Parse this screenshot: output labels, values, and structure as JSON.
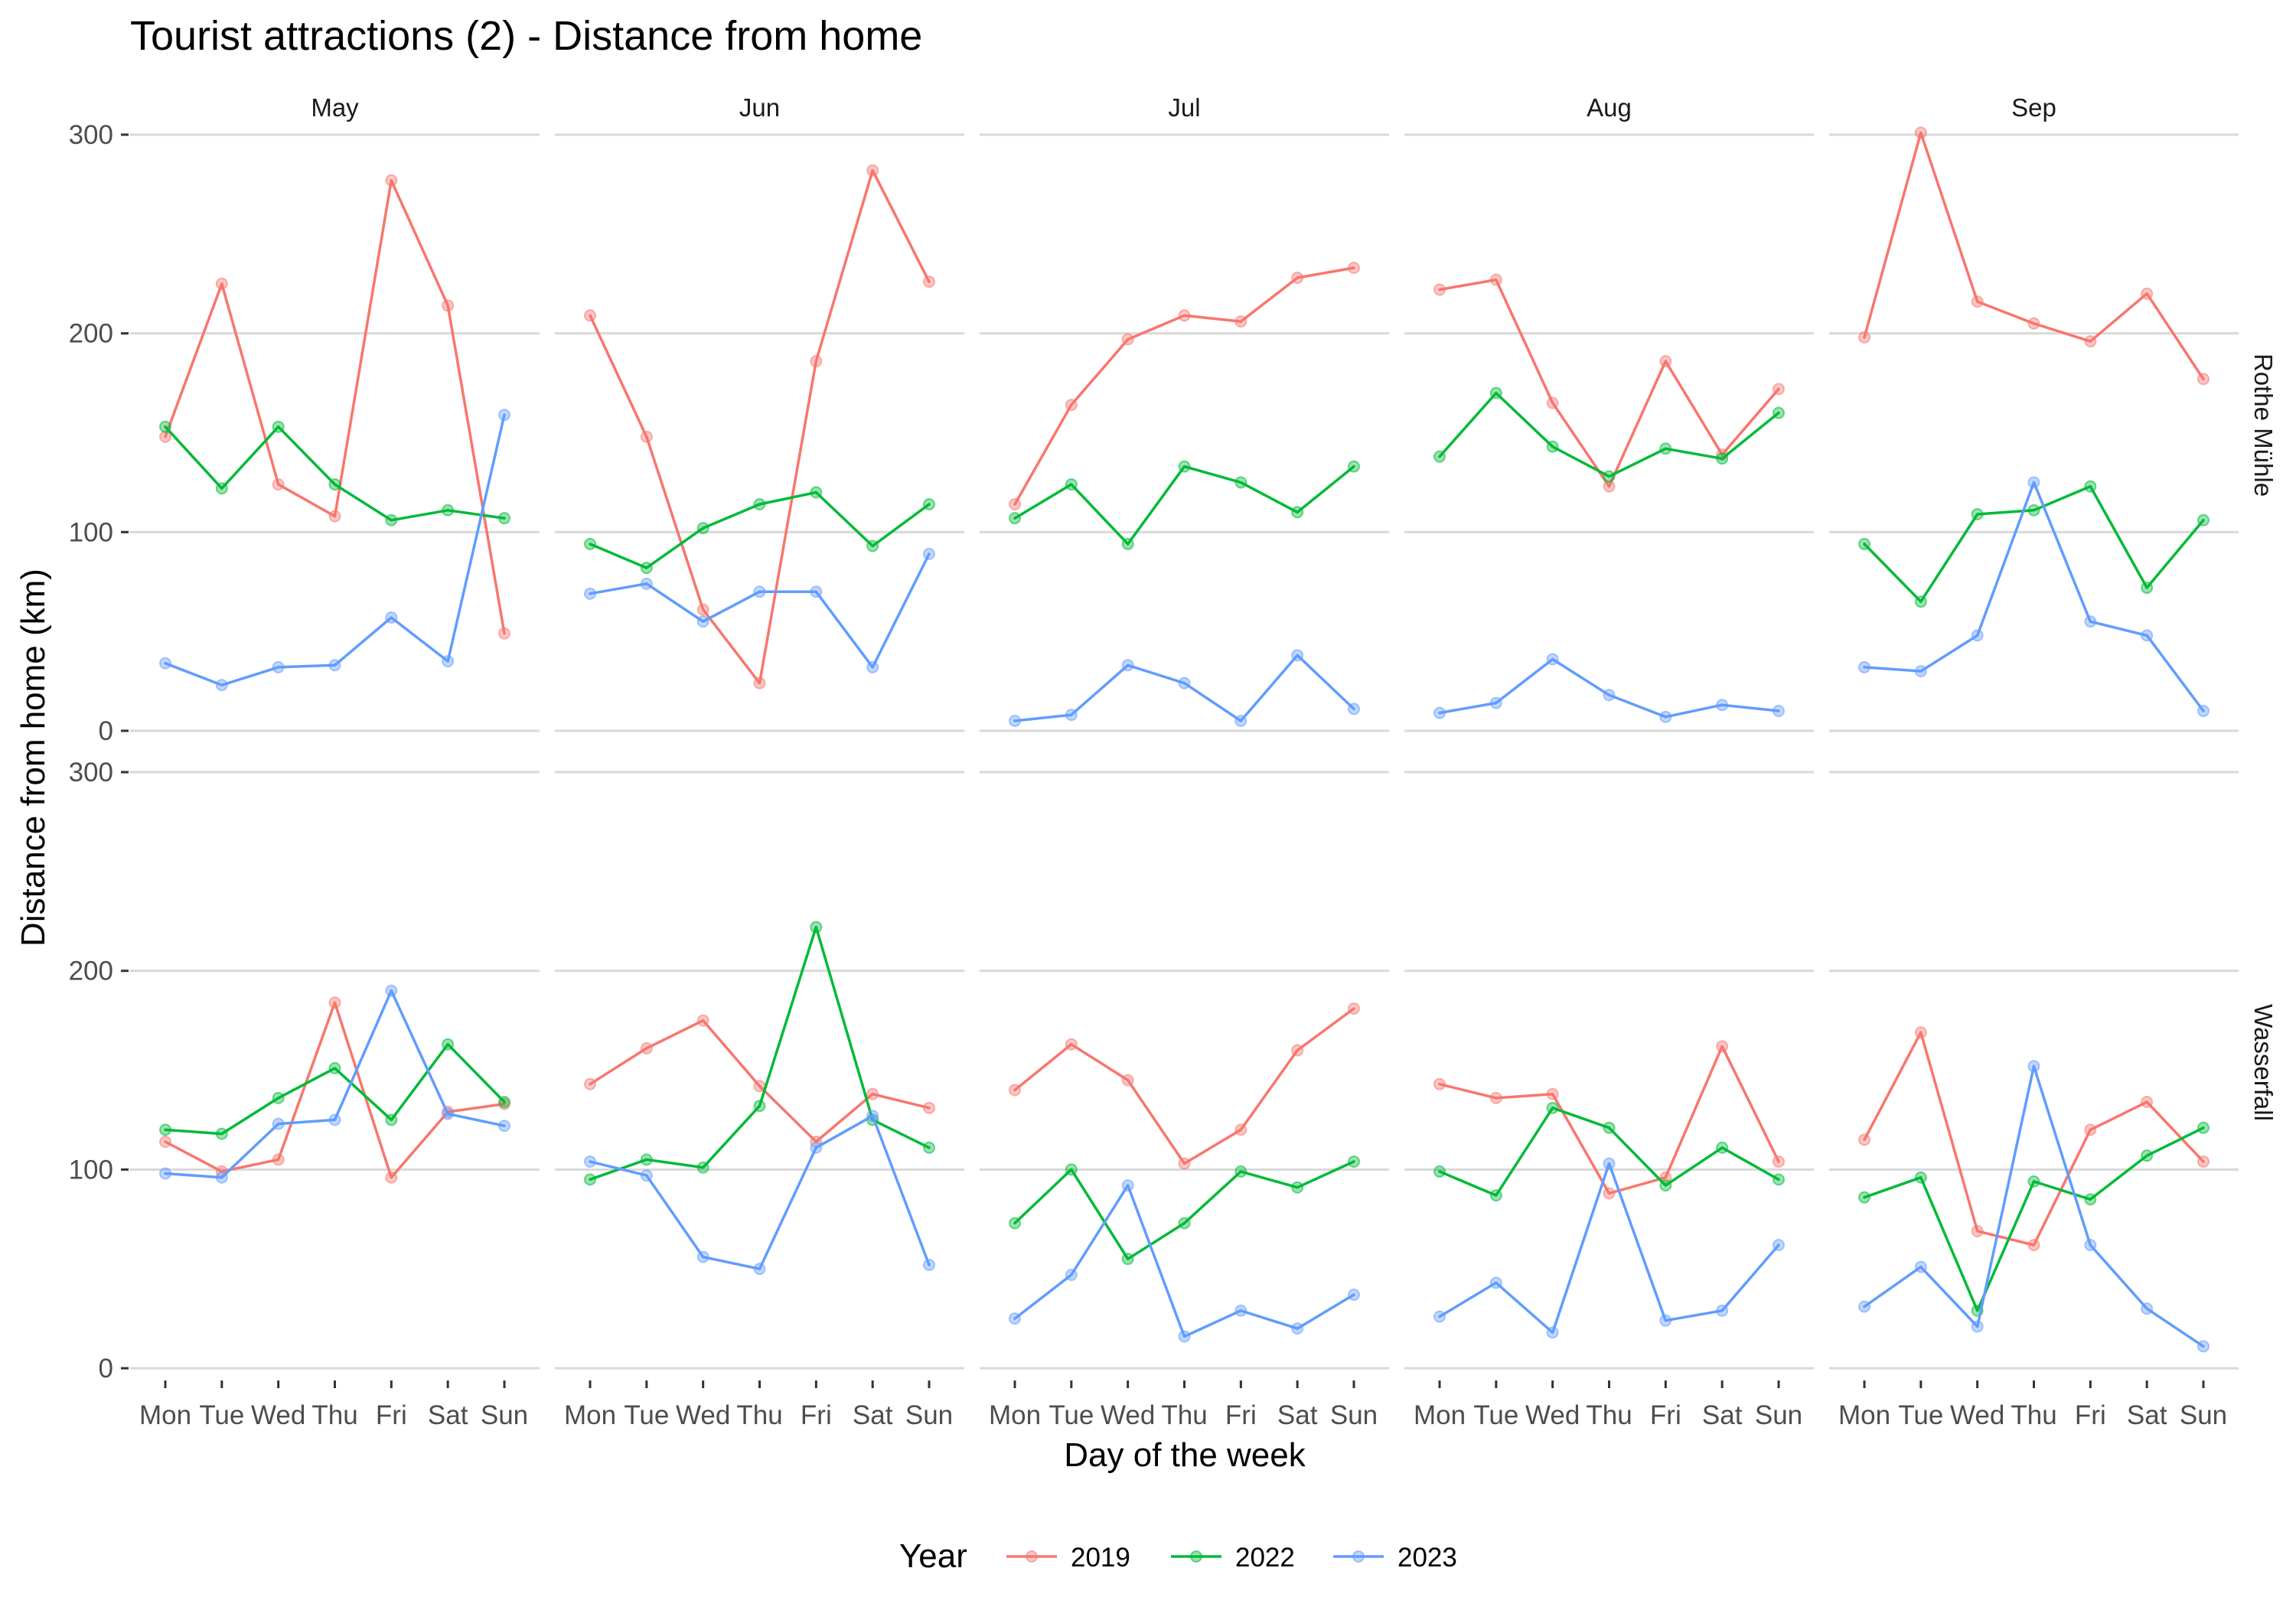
{
  "chart_data": {
    "type": "line",
    "title": "Tourist attractions (2) - Distance from home",
    "xlabel": "Day of the week",
    "ylabel": "Distance from home (km)",
    "categories": [
      "Mon",
      "Tue",
      "Wed",
      "Thu",
      "Fri",
      "Sat",
      "Sun"
    ],
    "columns": [
      "May",
      "Jun",
      "Jul",
      "Aug",
      "Sep"
    ],
    "rows": [
      "Rothe Mühle",
      "Wasserfall"
    ],
    "ylim": [
      0,
      300
    ],
    "yticks": [
      0,
      100,
      200,
      300
    ],
    "grid": true,
    "legend": {
      "title": "Year",
      "position": "bottom",
      "entries": [
        "2019",
        "2022",
        "2023"
      ]
    },
    "colors": {
      "2019": "#F8766D",
      "2022": "#00BA38",
      "2023": "#619CFF"
    },
    "panels": [
      {
        "row": "Rothe Mühle",
        "column": "May",
        "series": [
          {
            "name": "2019",
            "values": [
              148,
              225,
              124,
              108,
              277,
              214,
              49
            ]
          },
          {
            "name": "2022",
            "values": [
              153,
              122,
              153,
              124,
              106,
              111,
              107
            ]
          },
          {
            "name": "2023",
            "values": [
              34,
              23,
              32,
              33,
              57,
              35,
              159
            ]
          }
        ]
      },
      {
        "row": "Rothe Mühle",
        "column": "Jun",
        "series": [
          {
            "name": "2019",
            "values": [
              209,
              148,
              61,
              24,
              186,
              282,
              226
            ]
          },
          {
            "name": "2022",
            "values": [
              94,
              82,
              102,
              114,
              120,
              93,
              114
            ]
          },
          {
            "name": "2023",
            "values": [
              69,
              74,
              55,
              70,
              70,
              32,
              89
            ]
          }
        ]
      },
      {
        "row": "Rothe Mühle",
        "column": "Jul",
        "series": [
          {
            "name": "2019",
            "values": [
              114,
              164,
              197,
              209,
              206,
              228,
              233
            ]
          },
          {
            "name": "2022",
            "values": [
              107,
              124,
              94,
              133,
              125,
              110,
              133
            ]
          },
          {
            "name": "2023",
            "values": [
              5,
              8,
              33,
              24,
              5,
              38,
              11
            ]
          }
        ]
      },
      {
        "row": "Rothe Mühle",
        "column": "Aug",
        "series": [
          {
            "name": "2019",
            "values": [
              222,
              227,
              165,
              123,
              186,
              139,
              172
            ]
          },
          {
            "name": "2022",
            "values": [
              138,
              170,
              143,
              128,
              142,
              137,
              160
            ]
          },
          {
            "name": "2023",
            "values": [
              9,
              14,
              36,
              18,
              7,
              13,
              10
            ]
          }
        ]
      },
      {
        "row": "Rothe Mühle",
        "column": "Sep",
        "series": [
          {
            "name": "2019",
            "values": [
              198,
              301,
              216,
              205,
              196,
              220,
              177
            ]
          },
          {
            "name": "2022",
            "values": [
              94,
              65,
              109,
              111,
              123,
              72,
              106
            ]
          },
          {
            "name": "2023",
            "values": [
              32,
              30,
              48,
              125,
              55,
              48,
              10
            ]
          }
        ]
      },
      {
        "row": "Wasserfall",
        "column": "May",
        "series": [
          {
            "name": "2019",
            "values": [
              114,
              99,
              105,
              184,
              96,
              129,
              133
            ]
          },
          {
            "name": "2022",
            "values": [
              120,
              118,
              136,
              151,
              125,
              163,
              134
            ]
          },
          {
            "name": "2023",
            "values": [
              98,
              96,
              123,
              125,
              190,
              128,
              122
            ]
          }
        ]
      },
      {
        "row": "Wasserfall",
        "column": "Jun",
        "series": [
          {
            "name": "2019",
            "values": [
              143,
              161,
              175,
              142,
              114,
              138,
              131
            ]
          },
          {
            "name": "2022",
            "values": [
              95,
              105,
              101,
              132,
              222,
              125,
              111
            ]
          },
          {
            "name": "2023",
            "values": [
              104,
              97,
              56,
              50,
              111,
              127,
              52
            ]
          }
        ]
      },
      {
        "row": "Wasserfall",
        "column": "Jul",
        "series": [
          {
            "name": "2019",
            "values": [
              140,
              163,
              145,
              103,
              120,
              160,
              181
            ]
          },
          {
            "name": "2022",
            "values": [
              73,
              100,
              55,
              73,
              99,
              91,
              104
            ]
          },
          {
            "name": "2023",
            "values": [
              25,
              47,
              92,
              16,
              29,
              20,
              37
            ]
          }
        ]
      },
      {
        "row": "Wasserfall",
        "column": "Aug",
        "series": [
          {
            "name": "2019",
            "values": [
              143,
              136,
              138,
              88,
              96,
              162,
              104
            ]
          },
          {
            "name": "2022",
            "values": [
              99,
              87,
              131,
              121,
              92,
              111,
              95
            ]
          },
          {
            "name": "2023",
            "values": [
              26,
              43,
              18,
              103,
              24,
              29,
              62
            ]
          }
        ]
      },
      {
        "row": "Wasserfall",
        "column": "Sep",
        "series": [
          {
            "name": "2019",
            "values": [
              115,
              169,
              69,
              62,
              120,
              134,
              104
            ]
          },
          {
            "name": "2022",
            "values": [
              86,
              96,
              29,
              94,
              85,
              107,
              121
            ]
          },
          {
            "name": "2023",
            "values": [
              31,
              51,
              21,
              152,
              62,
              30,
              11
            ]
          }
        ]
      }
    ]
  }
}
